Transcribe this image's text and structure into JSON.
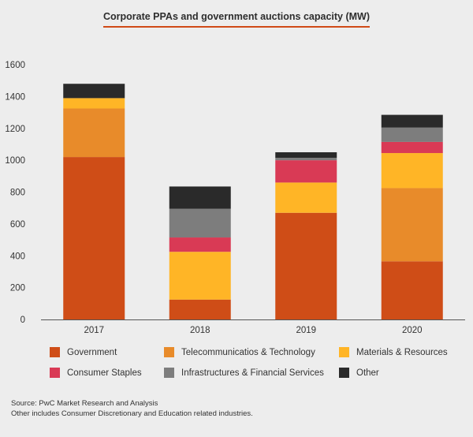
{
  "chart_data": {
    "type": "bar",
    "stacked": true,
    "title": "Corporate PPAs and government auctions capacity (MW)",
    "categories": [
      "2017",
      "2018",
      "2019",
      "2020"
    ],
    "ylim": [
      0,
      1600
    ],
    "yticks": [
      0,
      200,
      400,
      600,
      800,
      1000,
      1200,
      1400,
      1600
    ],
    "grid": false,
    "legend_position": "bottom",
    "series": [
      {
        "name": "Government",
        "color": "#cf4d17",
        "values": [
          1020,
          125,
          670,
          365
        ]
      },
      {
        "name": "Telecommunicatios & Technology",
        "color": "#e88b2a",
        "values": [
          305,
          0,
          0,
          460
        ]
      },
      {
        "name": "Materials & Resources",
        "color": "#ffb526",
        "values": [
          65,
          300,
          190,
          220
        ]
      },
      {
        "name": "Consumer Staples",
        "color": "#d93a55",
        "values": [
          0,
          90,
          140,
          70
        ]
      },
      {
        "name": "Infrastructures & Financial Services",
        "color": "#7d7d7d",
        "values": [
          0,
          180,
          15,
          90
        ]
      },
      {
        "name": "Other",
        "color": "#2a2a2a",
        "values": [
          90,
          140,
          35,
          80
        ]
      }
    ]
  },
  "footnote": {
    "line1": "Source: PwC Market Research and Analysis",
    "line2": "Other includes Consumer Discretionary and Education related industries."
  }
}
